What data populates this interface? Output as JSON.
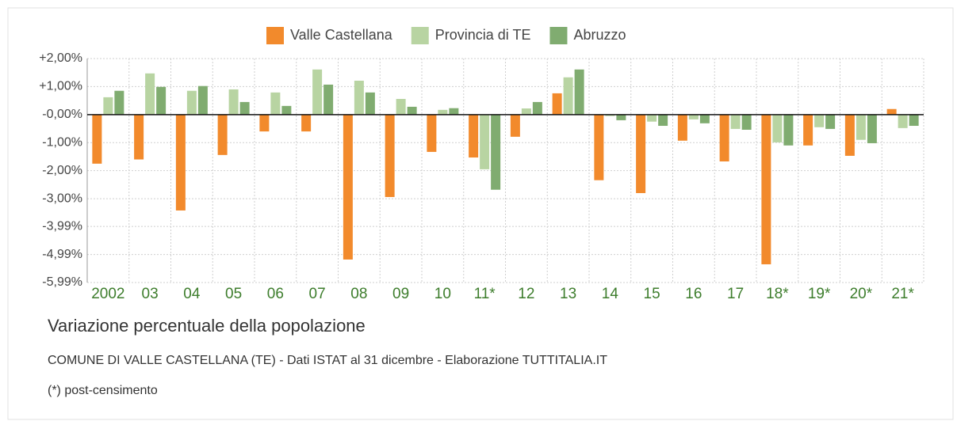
{
  "chart_data": {
    "type": "bar",
    "title": "Variazione percentuale della popolazione",
    "subtitle": "COMUNE DI VALLE CASTELLANA (TE) - Dati ISTAT al 31 dicembre - Elaborazione TUTTITALIA.IT",
    "note": "(*) post-censimento",
    "categories": [
      "2002",
      "03",
      "04",
      "05",
      "06",
      "07",
      "08",
      "09",
      "10",
      "11*",
      "12",
      "13",
      "14",
      "15",
      "16",
      "17",
      "18*",
      "19*",
      "20*",
      "21*"
    ],
    "series": [
      {
        "name": "Valle Castellana",
        "color": "#f28a2c",
        "values": [
          -1.75,
          -1.6,
          -3.42,
          -1.44,
          -0.6,
          -0.6,
          -5.17,
          -2.94,
          -1.33,
          -1.53,
          -0.79,
          0.76,
          -2.34,
          -2.8,
          -0.93,
          -1.67,
          -5.34,
          -1.1,
          -1.47,
          0.2
        ]
      },
      {
        "name": "Provincia di TE",
        "color": "#b8d4a2",
        "values": [
          0.62,
          1.47,
          0.85,
          0.9,
          0.79,
          1.61,
          1.21,
          0.56,
          0.17,
          -1.95,
          0.22,
          1.33,
          -0.05,
          -0.25,
          -0.17,
          -0.51,
          -0.99,
          -0.45,
          -0.9,
          -0.48
        ]
      },
      {
        "name": "Abruzzo",
        "color": "#80ac70",
        "values": [
          0.85,
          0.99,
          1.02,
          0.45,
          0.31,
          1.07,
          0.79,
          0.28,
          0.23,
          -2.68,
          0.45,
          1.61,
          -0.2,
          -0.4,
          -0.31,
          -0.54,
          -1.1,
          -0.51,
          -1.02,
          -0.4
        ]
      }
    ],
    "ylim": [
      -5.99,
      2
    ],
    "yticks": [
      {
        "value": 2,
        "label": "+2,00%"
      },
      {
        "value": 1,
        "label": "+1,00%"
      },
      {
        "value": 0,
        "label": "-0,00%"
      },
      {
        "value": -1,
        "label": "-1,00%"
      },
      {
        "value": -2,
        "label": "-2,00%"
      },
      {
        "value": -3,
        "label": "-3,00%"
      },
      {
        "value": -3.99,
        "label": "-3,99%"
      },
      {
        "value": -4.99,
        "label": "-4,99%"
      },
      {
        "value": -5.99,
        "label": "-5,99%"
      }
    ],
    "grid": true,
    "legend": "top"
  }
}
